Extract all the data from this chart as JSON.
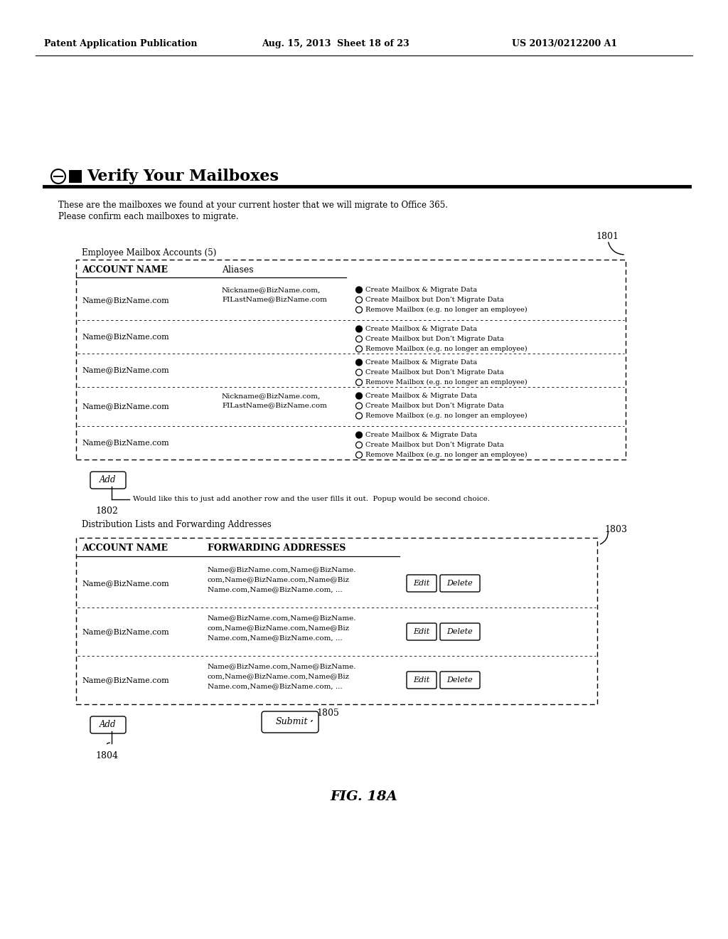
{
  "header_left": "Patent Application Publication",
  "header_mid": "Aug. 15, 2013  Sheet 18 of 23",
  "header_right": "US 2013/0212200 A1",
  "title": "Verify Your Mailboxes",
  "intro_line1": "These are the mailboxes we found at your current hoster that we will migrate to Office 365.",
  "intro_line2": "Please confirm each mailboxes to migrate.",
  "section1_label": "Employee Mailbox Accounts (5)",
  "ref1": "1801",
  "table1_headers": [
    "ACCOUNT NAME",
    "Aliases"
  ],
  "table1_rows": [
    [
      "Name@BizName.com",
      "Nickname@BizName.com,\nFILastName@BizName.com"
    ],
    [
      "Name@BizName.com",
      ""
    ],
    [
      "Name@BizName.com",
      ""
    ],
    [
      "Name@BizName.com",
      "Nickname@BizName.com,\nFILastName@BizName.com"
    ],
    [
      "Name@BizName.com",
      ""
    ]
  ],
  "radio_options": [
    "Create Mailbox & Migrate Data",
    "Create Mailbox but Don’t Migrate Data",
    "Remove Mailbox (e.g. no longer an employee)"
  ],
  "add_btn1": "Add",
  "ref2": "1802",
  "add_note": "Would like this to just add another row and the user fills it out.  Popup would be second choice.",
  "section2_label": "Distribution Lists and Forwarding Addresses",
  "ref3": "1803",
  "table2_headers": [
    "ACCOUNT NAME",
    "FORWARDING ADDRESSES"
  ],
  "table2_rows": [
    [
      "Name@BizName.com",
      "Name@BizName.com,Name@BizName.\ncom,Name@BizName.com,Name@Biz\nName.com,Name@BizName.com, ..."
    ],
    [
      "Name@BizName.com",
      "Name@BizName.com,Name@BizName.\ncom,Name@BizName.com,Name@Biz\nName.com,Name@BizName.com, ..."
    ],
    [
      "Name@BizName.com",
      "Name@BizName.com,Name@BizName.\ncom,Name@BizName.com,Name@Biz\nName.com,Name@BizName.com, ..."
    ]
  ],
  "edit_btn": "Edit",
  "delete_btn": "Delete",
  "add_btn2": "Add",
  "ref4": "1804",
  "submit_btn": "Submit",
  "ref5": "1805",
  "fig_label": "FIG. 18A",
  "bg_color": "#ffffff"
}
